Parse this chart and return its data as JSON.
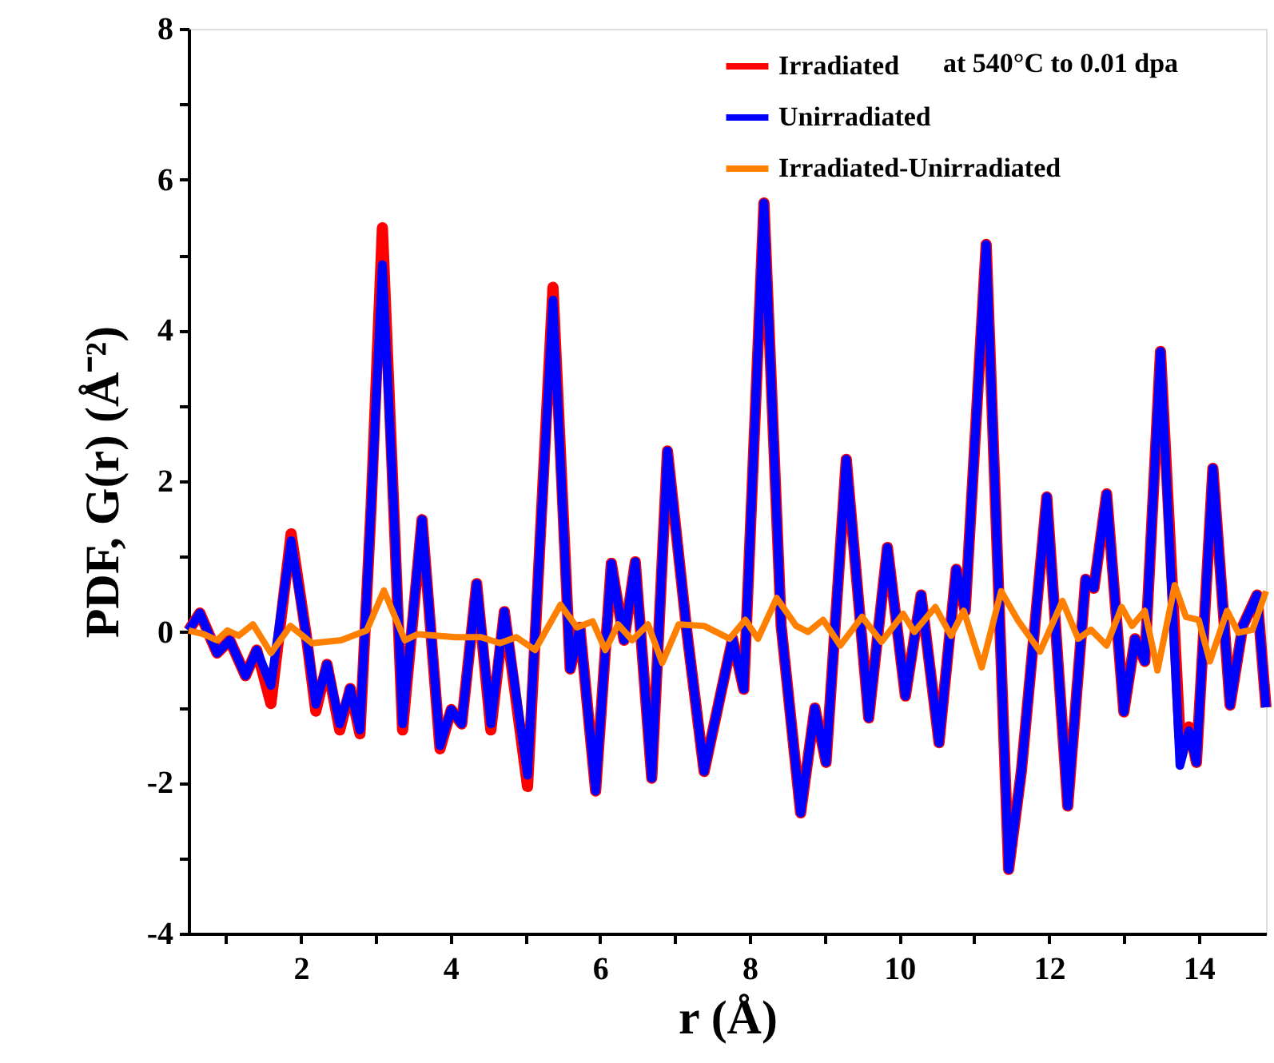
{
  "chart_data": {
    "type": "line",
    "xlabel": "r (Å)",
    "ylabel": "PDF, G(r) (Å⁻²)",
    "xlim": [
      0.5,
      14.9
    ],
    "ylim": [
      -4,
      8
    ],
    "xticks": [
      {
        "value": 1,
        "label": null
      },
      2,
      {
        "value": 3,
        "label": null
      },
      4,
      {
        "value": 5,
        "label": null
      },
      6,
      {
        "value": 7,
        "label": null
      },
      8,
      {
        "value": 9,
        "label": null
      },
      10,
      {
        "value": 11,
        "label": null
      },
      12,
      {
        "value": 13,
        "label": null
      },
      14
    ],
    "yticks": [
      -4,
      {
        "value": -3,
        "label": null
      },
      -2,
      {
        "value": -1,
        "label": null
      },
      0,
      {
        "value": 1,
        "label": null
      },
      2,
      {
        "value": 3,
        "label": null
      },
      4,
      {
        "value": 5,
        "label": null
      },
      6,
      {
        "value": 7,
        "label": null
      },
      8
    ],
    "grid": false,
    "legend": "top right",
    "line_style": "solid",
    "marker": "none",
    "annotations": [
      "at 540°C to 0.01 dpa"
    ],
    "x": [
      0.5,
      0.65,
      0.88,
      1.05,
      1.26,
      1.41,
      1.6,
      1.87,
      2.07,
      2.2,
      2.35,
      2.52,
      2.66,
      2.79,
      2.94,
      3.09,
      3.24,
      3.36,
      3.62,
      3.86,
      4.01,
      4.15,
      4.35,
      4.54,
      4.72,
      5.03,
      5.37,
      5.6,
      5.73,
      5.94,
      6.15,
      6.32,
      6.47,
      6.69,
      6.9,
      7.16,
      7.39,
      7.77,
      7.92,
      8.19,
      8.42,
      8.68,
      8.87,
      9.02,
      9.29,
      9.59,
      9.84,
      10.08,
      10.29,
      10.53,
      10.76,
      10.88,
      11.16,
      11.46,
      11.63,
      11.97,
      12.25,
      12.49,
      12.6,
      12.77,
      13.0,
      13.15,
      13.28,
      13.49,
      13.75,
      13.87,
      13.97,
      14.19,
      14.42,
      14.59,
      14.78,
      14.9
    ],
    "series": [
      {
        "name": "Irradiated",
        "color": "#ff0000",
        "values": [
          0.02,
          0.25,
          -0.28,
          -0.11,
          -0.58,
          -0.24,
          -0.95,
          1.3,
          -0.03,
          -1.05,
          -0.43,
          -1.3,
          -0.75,
          -1.35,
          1.68,
          5.36,
          1.68,
          -1.3,
          1.49,
          -1.55,
          -1.03,
          -1.22,
          0.64,
          -1.3,
          0.27,
          -2.05,
          4.57,
          -0.49,
          0.06,
          -2.11,
          0.91,
          -0.11,
          0.93,
          -1.94,
          2.4,
          0,
          -1.85,
          -0.09,
          -0.76,
          5.69,
          0.08,
          -2.4,
          -1.01,
          -1.73,
          2.29,
          -1.14,
          1.12,
          -0.85,
          0.49,
          -1.47,
          0.83,
          0.28,
          5.14,
          -3.15,
          -1.85,
          1.79,
          -2.31,
          0.7,
          0.58,
          1.83,
          -1.06,
          -0.09,
          -0.39,
          3.72,
          -1.4,
          -1.26,
          -1.73,
          2.17,
          -0.97,
          0.08,
          0.49,
          -1.0
        ]
      },
      {
        "name": "Unirradiated",
        "color": "#0000ff",
        "values": [
          0.02,
          0.25,
          -0.28,
          -0.11,
          -0.58,
          -0.24,
          -0.71,
          1.21,
          -0.03,
          -0.96,
          -0.43,
          -1.22,
          -0.75,
          -1.3,
          1.68,
          4.87,
          1.68,
          -1.22,
          1.49,
          -1.51,
          -1.03,
          -1.22,
          0.64,
          -1.22,
          0.27,
          -1.9,
          4.4,
          -0.49,
          0.06,
          -2.11,
          0.91,
          -0.11,
          0.93,
          -1.94,
          2.4,
          0,
          -1.85,
          -0.09,
          -0.76,
          5.69,
          0.08,
          -2.4,
          -1.01,
          -1.73,
          2.29,
          -1.14,
          1.12,
          -0.85,
          0.49,
          -1.47,
          0.83,
          0.28,
          5.14,
          -3.15,
          -1.85,
          1.79,
          -2.31,
          0.7,
          0.58,
          1.83,
          -1.06,
          -0.09,
          -0.39,
          3.72,
          -1.77,
          -1.31,
          -1.73,
          2.17,
          -0.97,
          0.08,
          0.49,
          -1.0
        ]
      },
      {
        "name": "Irradiated-Unirradiated",
        "color": "#ff8000",
        "x": [
          0.5,
          0.7,
          0.88,
          1.02,
          1.17,
          1.36,
          1.6,
          1.86,
          2.15,
          2.54,
          2.88,
          3.11,
          3.39,
          3.56,
          4.07,
          4.41,
          4.66,
          4.88,
          5.13,
          5.47,
          5.69,
          5.9,
          6.07,
          6.24,
          6.43,
          6.64,
          6.83,
          7.05,
          7.39,
          7.73,
          7.94,
          8.11,
          8.36,
          8.62,
          8.78,
          8.98,
          9.21,
          9.5,
          9.76,
          10.05,
          10.2,
          10.48,
          10.69,
          10.86,
          11.1,
          11.36,
          11.58,
          11.88,
          12.18,
          12.39,
          12.56,
          12.77,
          12.97,
          13.11,
          13.28,
          13.45,
          13.68,
          13.83,
          14.0,
          14.15,
          14.38,
          14.53,
          14.72,
          14.9
        ],
        "values": [
          0.02,
          -0.03,
          -0.11,
          0.02,
          -0.05,
          0.1,
          -0.28,
          0.08,
          -0.15,
          -0.11,
          0.02,
          0.55,
          -0.11,
          -0.03,
          -0.07,
          -0.07,
          -0.15,
          -0.07,
          -0.24,
          0.36,
          0.06,
          0.14,
          -0.24,
          0.1,
          -0.11,
          0.1,
          -0.41,
          0.1,
          0.08,
          -0.09,
          0.16,
          -0.09,
          0.45,
          0.08,
          0,
          0.16,
          -0.18,
          0.2,
          -0.13,
          0.24,
          0,
          0.33,
          -0.05,
          0.28,
          -0.47,
          0.54,
          0.16,
          -0.26,
          0.41,
          -0.09,
          0.03,
          -0.18,
          0.33,
          0.08,
          0.28,
          -0.51,
          0.62,
          0.2,
          0.16,
          -0.39,
          0.28,
          -0.01,
          0.03,
          0.54
        ]
      }
    ]
  }
}
